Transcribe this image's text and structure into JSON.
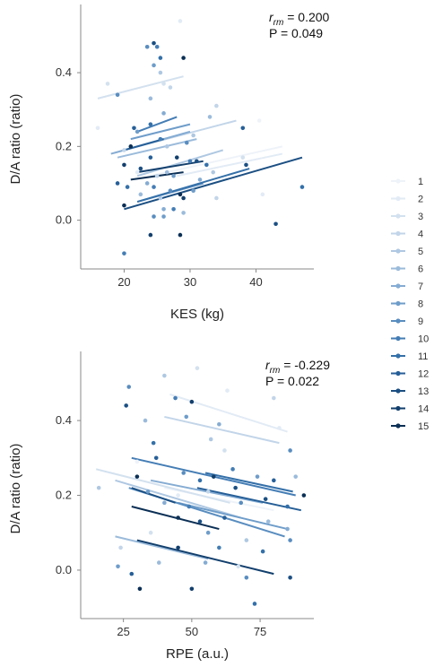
{
  "palette": [
    "#eef3f9",
    "#e2ebf5",
    "#d3e1ef",
    "#c2d5e9",
    "#afc8e2",
    "#9bbbdb",
    "#85acd3",
    "#6f9dca",
    "#598dc0",
    "#447db5",
    "#3470a9",
    "#265f98",
    "#1b4f83",
    "#123f6d",
    "#0b2f55"
  ],
  "legend": {
    "subjects": [
      "1",
      "2",
      "3",
      "4",
      "5",
      "6",
      "7",
      "8",
      "9",
      "10",
      "11",
      "12",
      "13",
      "14",
      "15"
    ]
  },
  "chart_data": [
    {
      "type": "scatter",
      "xlabel": "KES (kg)",
      "ylabel": "D/A ratio (ratio)",
      "stat_r_symbol": "r",
      "stat_r_sub": "rm",
      "stat_r_value": " = 0.200",
      "stat_p": "P = 0.049",
      "xlim": [
        14.5,
        48.5
      ],
      "ylim": [
        -0.12,
        0.58
      ],
      "xticks": [
        20,
        30,
        40
      ],
      "yticks": [
        0.0,
        0.2,
        0.4
      ],
      "xtick_labels": [
        "20",
        "30",
        "40"
      ],
      "ytick_labels": [
        "0.0",
        "0.2",
        "0.4"
      ],
      "lines": [
        {
          "subject": "1",
          "x": [
            24,
            44
          ],
          "y": [
            0.12,
            0.2
          ]
        },
        {
          "subject": "2",
          "x": [
            28,
            44
          ],
          "y": [
            0.12,
            0.18
          ]
        },
        {
          "subject": "3",
          "x": [
            16,
            29
          ],
          "y": [
            0.33,
            0.39
          ]
        },
        {
          "subject": "4",
          "x": [
            20,
            37
          ],
          "y": [
            0.19,
            0.27
          ]
        },
        {
          "subject": "5",
          "x": [
            22,
            35
          ],
          "y": [
            0.12,
            0.19
          ]
        },
        {
          "subject": "6",
          "x": [
            19,
            31
          ],
          "y": [
            0.17,
            0.22
          ]
        },
        {
          "subject": "7",
          "x": [
            18,
            30
          ],
          "y": [
            0.18,
            0.24
          ]
        },
        {
          "subject": "8",
          "x": [
            21,
            30
          ],
          "y": [
            0.22,
            0.26
          ]
        },
        {
          "subject": "9",
          "x": [
            22,
            32
          ],
          "y": [
            0.05,
            0.1
          ]
        },
        {
          "subject": "10",
          "x": [
            22,
            28
          ],
          "y": [
            0.24,
            0.28
          ]
        },
        {
          "subject": "11",
          "x": [
            22,
            39
          ],
          "y": [
            0.05,
            0.14
          ]
        },
        {
          "subject": "12",
          "x": [
            20,
            26
          ],
          "y": [
            0.19,
            0.22
          ]
        },
        {
          "subject": "13",
          "x": [
            20,
            47
          ],
          "y": [
            0.03,
            0.17
          ]
        },
        {
          "subject": "14",
          "x": [
            22,
            32
          ],
          "y": [
            0.13,
            0.16
          ]
        },
        {
          "subject": "15",
          "x": [
            21,
            29
          ],
          "y": [
            0.11,
            0.13
          ]
        }
      ],
      "points": [
        {
          "x": 28.5,
          "y": 0.54,
          "s": "2"
        },
        {
          "x": 23.5,
          "y": 0.47,
          "s": "9"
        },
        {
          "x": 24.5,
          "y": 0.48,
          "s": "13"
        },
        {
          "x": 25.0,
          "y": 0.47,
          "s": "10"
        },
        {
          "x": 25.5,
          "y": 0.44,
          "s": "11"
        },
        {
          "x": 29.0,
          "y": 0.44,
          "s": "15"
        },
        {
          "x": 24.5,
          "y": 0.42,
          "s": "8"
        },
        {
          "x": 25.5,
          "y": 0.4,
          "s": "5"
        },
        {
          "x": 19.0,
          "y": 0.34,
          "s": "9"
        },
        {
          "x": 24.0,
          "y": 0.33,
          "s": "6"
        },
        {
          "x": 27.0,
          "y": 0.36,
          "s": "4"
        },
        {
          "x": 17.5,
          "y": 0.37,
          "s": "3"
        },
        {
          "x": 24.0,
          "y": 0.26,
          "s": "11"
        },
        {
          "x": 21.5,
          "y": 0.25,
          "s": "12"
        },
        {
          "x": 26.0,
          "y": 0.29,
          "s": "7"
        },
        {
          "x": 33.0,
          "y": 0.28,
          "s": "6"
        },
        {
          "x": 22.0,
          "y": 0.24,
          "s": "8"
        },
        {
          "x": 25.5,
          "y": 0.22,
          "s": "10"
        },
        {
          "x": 26.5,
          "y": 0.2,
          "s": "5"
        },
        {
          "x": 29.5,
          "y": 0.21,
          "s": "9"
        },
        {
          "x": 21.0,
          "y": 0.2,
          "s": "15"
        },
        {
          "x": 20.0,
          "y": 0.19,
          "s": "4"
        },
        {
          "x": 24.0,
          "y": 0.17,
          "s": "12"
        },
        {
          "x": 28.0,
          "y": 0.17,
          "s": "14"
        },
        {
          "x": 31.0,
          "y": 0.16,
          "s": "13"
        },
        {
          "x": 32.5,
          "y": 0.15,
          "s": "11"
        },
        {
          "x": 38.0,
          "y": 0.17,
          "s": "3"
        },
        {
          "x": 38.0,
          "y": 0.25,
          "s": "12"
        },
        {
          "x": 20.0,
          "y": 0.15,
          "s": "14"
        },
        {
          "x": 22.5,
          "y": 0.14,
          "s": "13"
        },
        {
          "x": 26.5,
          "y": 0.13,
          "s": "6"
        },
        {
          "x": 27.5,
          "y": 0.12,
          "s": "8"
        },
        {
          "x": 19.0,
          "y": 0.1,
          "s": "12"
        },
        {
          "x": 20.5,
          "y": 0.09,
          "s": "11"
        },
        {
          "x": 23.5,
          "y": 0.1,
          "s": "7"
        },
        {
          "x": 24.5,
          "y": 0.09,
          "s": "10"
        },
        {
          "x": 27.0,
          "y": 0.08,
          "s": "9"
        },
        {
          "x": 28.5,
          "y": 0.07,
          "s": "15"
        },
        {
          "x": 29.0,
          "y": 0.06,
          "s": "14"
        },
        {
          "x": 30.5,
          "y": 0.08,
          "s": "8"
        },
        {
          "x": 22.5,
          "y": 0.07,
          "s": "6"
        },
        {
          "x": 25.5,
          "y": 0.06,
          "s": "5"
        },
        {
          "x": 26.0,
          "y": 0.03,
          "s": "7"
        },
        {
          "x": 27.5,
          "y": 0.03,
          "s": "10"
        },
        {
          "x": 24.5,
          "y": 0.01,
          "s": "9"
        },
        {
          "x": 26.0,
          "y": 0.01,
          "s": "8"
        },
        {
          "x": 20.0,
          "y": 0.04,
          "s": "15"
        },
        {
          "x": 29.0,
          "y": 0.02,
          "s": "6"
        },
        {
          "x": 34.0,
          "y": 0.06,
          "s": "4"
        },
        {
          "x": 38.5,
          "y": 0.15,
          "s": "13"
        },
        {
          "x": 43.0,
          "y": -0.01,
          "s": "13"
        },
        {
          "x": 47.0,
          "y": 0.09,
          "s": "11"
        },
        {
          "x": 24.0,
          "y": -0.04,
          "s": "14"
        },
        {
          "x": 28.5,
          "y": -0.04,
          "s": "15"
        },
        {
          "x": 20.0,
          "y": -0.09,
          "s": "10"
        },
        {
          "x": 16.0,
          "y": 0.25,
          "s": "2"
        },
        {
          "x": 34.0,
          "y": 0.31,
          "s": "4"
        },
        {
          "x": 30.5,
          "y": 0.23,
          "s": "5"
        },
        {
          "x": 26.0,
          "y": 0.37,
          "s": "3"
        },
        {
          "x": 22.0,
          "y": 0.13,
          "s": "2"
        },
        {
          "x": 31.5,
          "y": 0.11,
          "s": "7"
        },
        {
          "x": 33.5,
          "y": 0.13,
          "s": "5"
        },
        {
          "x": 41.0,
          "y": 0.07,
          "s": "2"
        },
        {
          "x": 40.5,
          "y": 0.27,
          "s": "1"
        },
        {
          "x": 30.0,
          "y": 0.16,
          "s": "10"
        },
        {
          "x": 25.0,
          "y": 0.12,
          "s": "4"
        }
      ]
    },
    {
      "type": "scatter",
      "xlabel": "RPE (a.u.)",
      "ylabel": "D/A ratio (ratio)",
      "stat_r_symbol": "r",
      "stat_r_sub": "rm",
      "stat_r_value": " = -0.229",
      "stat_p": "P = 0.022",
      "xlim": [
        12,
        94
      ],
      "ylim": [
        -0.12,
        0.58
      ],
      "xticks": [
        25,
        50,
        75
      ],
      "yticks": [
        0.0,
        0.2,
        0.4
      ],
      "xtick_labels": [
        "25",
        "50",
        "75"
      ],
      "ytick_labels": [
        "0.0",
        "0.2",
        "0.4"
      ],
      "lines": [
        {
          "subject": "1",
          "x": [
            40,
            80
          ],
          "y": [
            0.22,
            0.16
          ]
        },
        {
          "subject": "2",
          "x": [
            42,
            85
          ],
          "y": [
            0.47,
            0.37
          ]
        },
        {
          "subject": "3",
          "x": [
            15,
            64
          ],
          "y": [
            0.27,
            0.18
          ]
        },
        {
          "subject": "4",
          "x": [
            40,
            82
          ],
          "y": [
            0.41,
            0.34
          ]
        },
        {
          "subject": "5",
          "x": [
            22,
            68
          ],
          "y": [
            0.24,
            0.14
          ]
        },
        {
          "subject": "6",
          "x": [
            22,
            56
          ],
          "y": [
            0.09,
            0.03
          ]
        },
        {
          "subject": "7",
          "x": [
            35,
            76
          ],
          "y": [
            0.24,
            0.18
          ]
        },
        {
          "subject": "8",
          "x": [
            45,
            85
          ],
          "y": [
            0.18,
            0.11
          ]
        },
        {
          "subject": "9",
          "x": [
            27,
            84
          ],
          "y": [
            0.22,
            0.09
          ]
        },
        {
          "subject": "10",
          "x": [
            28,
            88
          ],
          "y": [
            0.3,
            0.2
          ]
        },
        {
          "subject": "11",
          "x": [
            55,
            87
          ],
          "y": [
            0.26,
            0.21
          ]
        },
        {
          "subject": "12",
          "x": [
            52,
            90
          ],
          "y": [
            0.22,
            0.16
          ]
        },
        {
          "subject": "13",
          "x": [
            28,
            44
          ],
          "y": [
            0.22,
            0.18
          ]
        },
        {
          "subject": "14",
          "x": [
            30,
            80
          ],
          "y": [
            0.08,
            -0.01
          ]
        },
        {
          "subject": "15",
          "x": [
            28,
            60
          ],
          "y": [
            0.17,
            0.11
          ]
        }
      ],
      "points": [
        {
          "x": 40,
          "y": 0.52,
          "s": "5"
        },
        {
          "x": 52,
          "y": 0.54,
          "s": "3"
        },
        {
          "x": 27,
          "y": 0.49,
          "s": "9"
        },
        {
          "x": 44,
          "y": 0.46,
          "s": "10"
        },
        {
          "x": 50,
          "y": 0.45,
          "s": "14"
        },
        {
          "x": 26,
          "y": 0.44,
          "s": "13"
        },
        {
          "x": 63,
          "y": 0.48,
          "s": "2"
        },
        {
          "x": 80,
          "y": 0.46,
          "s": "4"
        },
        {
          "x": 33,
          "y": 0.4,
          "s": "6"
        },
        {
          "x": 48,
          "y": 0.41,
          "s": "8"
        },
        {
          "x": 60,
          "y": 0.39,
          "s": "7"
        },
        {
          "x": 86,
          "y": 0.32,
          "s": "9"
        },
        {
          "x": 36,
          "y": 0.34,
          "s": "11"
        },
        {
          "x": 57,
          "y": 0.35,
          "s": "5"
        },
        {
          "x": 37,
          "y": 0.3,
          "s": "12"
        },
        {
          "x": 65,
          "y": 0.27,
          "s": "10"
        },
        {
          "x": 30,
          "y": 0.25,
          "s": "15"
        },
        {
          "x": 47,
          "y": 0.26,
          "s": "9"
        },
        {
          "x": 53,
          "y": 0.24,
          "s": "11"
        },
        {
          "x": 58,
          "y": 0.25,
          "s": "14"
        },
        {
          "x": 74,
          "y": 0.25,
          "s": "8"
        },
        {
          "x": 80,
          "y": 0.24,
          "s": "12"
        },
        {
          "x": 88,
          "y": 0.25,
          "s": "6"
        },
        {
          "x": 16,
          "y": 0.22,
          "s": "5"
        },
        {
          "x": 34,
          "y": 0.21,
          "s": "8"
        },
        {
          "x": 56,
          "y": 0.21,
          "s": "4"
        },
        {
          "x": 66,
          "y": 0.22,
          "s": "13"
        },
        {
          "x": 77,
          "y": 0.19,
          "s": "13"
        },
        {
          "x": 91,
          "y": 0.2,
          "s": "15"
        },
        {
          "x": 40,
          "y": 0.18,
          "s": "7"
        },
        {
          "x": 49,
          "y": 0.17,
          "s": "10"
        },
        {
          "x": 68,
          "y": 0.18,
          "s": "9"
        },
        {
          "x": 85,
          "y": 0.17,
          "s": "11"
        },
        {
          "x": 45,
          "y": 0.14,
          "s": "15"
        },
        {
          "x": 53,
          "y": 0.13,
          "s": "13"
        },
        {
          "x": 62,
          "y": 0.14,
          "s": "12"
        },
        {
          "x": 78,
          "y": 0.13,
          "s": "6"
        },
        {
          "x": 85,
          "y": 0.11,
          "s": "7"
        },
        {
          "x": 35,
          "y": 0.1,
          "s": "3"
        },
        {
          "x": 56,
          "y": 0.1,
          "s": "8"
        },
        {
          "x": 70,
          "y": 0.08,
          "s": "5"
        },
        {
          "x": 86,
          "y": 0.08,
          "s": "9"
        },
        {
          "x": 24,
          "y": 0.06,
          "s": "4"
        },
        {
          "x": 45,
          "y": 0.06,
          "s": "14"
        },
        {
          "x": 60,
          "y": 0.06,
          "s": "10"
        },
        {
          "x": 76,
          "y": 0.05,
          "s": "11"
        },
        {
          "x": 38,
          "y": 0.02,
          "s": "6"
        },
        {
          "x": 55,
          "y": 0.02,
          "s": "7"
        },
        {
          "x": 67,
          "y": 0.01,
          "s": "3"
        },
        {
          "x": 23,
          "y": 0.01,
          "s": "8"
        },
        {
          "x": 28,
          "y": -0.01,
          "s": "12"
        },
        {
          "x": 31,
          "y": -0.05,
          "s": "15"
        },
        {
          "x": 50,
          "y": -0.05,
          "s": "14"
        },
        {
          "x": 70,
          "y": -0.02,
          "s": "9"
        },
        {
          "x": 73,
          "y": -0.09,
          "s": "11"
        },
        {
          "x": 86,
          "y": -0.02,
          "s": "13"
        },
        {
          "x": 62,
          "y": 0.32,
          "s": "3"
        },
        {
          "x": 82,
          "y": 0.38,
          "s": "2"
        },
        {
          "x": 30,
          "y": 0.29,
          "s": "1"
        },
        {
          "x": 45,
          "y": 0.2,
          "s": "2"
        }
      ]
    }
  ]
}
